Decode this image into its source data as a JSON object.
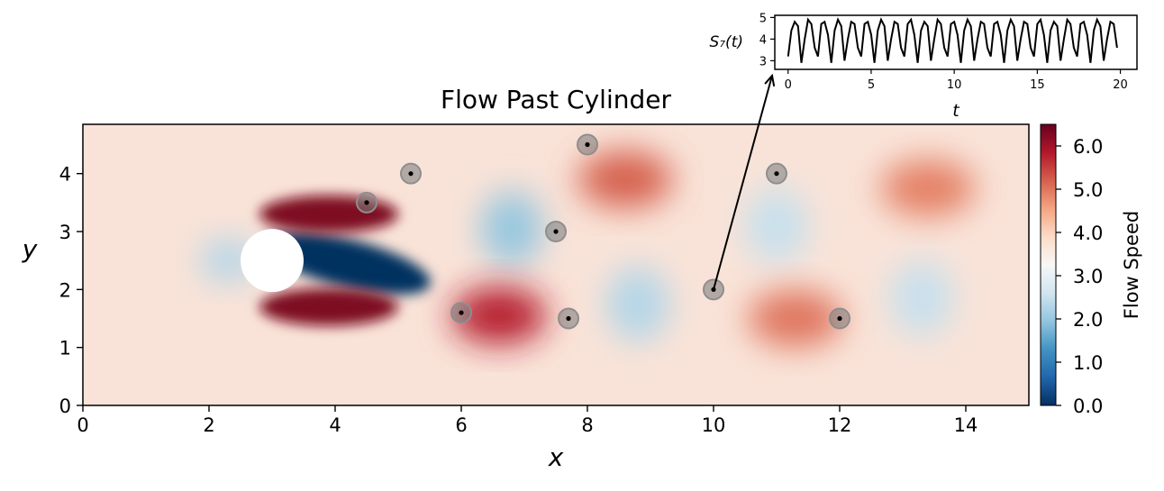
{
  "chart_data": [
    {
      "type": "heatmap",
      "title": "Flow Past Cylinder",
      "xlabel": "x",
      "ylabel": "y",
      "xlim": [
        0,
        15
      ],
      "ylim": [
        0,
        4.85
      ],
      "x_ticks": [
        0,
        2,
        4,
        6,
        8,
        10,
        12,
        14
      ],
      "y_ticks": [
        0,
        1,
        2,
        3,
        4
      ],
      "colorbar": {
        "label": "Flow Speed",
        "range": [
          0,
          6.5
        ],
        "ticks": [
          "0.0",
          "1.0",
          "2.0",
          "3.0",
          "4.0",
          "5.0",
          "6.0"
        ],
        "colormap": "RdBu_r",
        "colors": [
          "#053061",
          "#2166ac",
          "#4393c3",
          "#92c5de",
          "#d1e5f0",
          "#f7f7f7",
          "#fddbc7",
          "#f4a582",
          "#d6604d",
          "#b2182b",
          "#67001f"
        ]
      },
      "cylinder": {
        "x": 3.0,
        "y": 2.5,
        "radius": 0.5,
        "color": "#ffffff"
      },
      "sensors": [
        {
          "id": 1,
          "x": 4.5,
          "y": 3.5
        },
        {
          "id": 2,
          "x": 5.2,
          "y": 4.0
        },
        {
          "id": 3,
          "x": 6.0,
          "y": 1.6
        },
        {
          "id": 4,
          "x": 7.5,
          "y": 3.0
        },
        {
          "id": 5,
          "x": 7.7,
          "y": 1.5
        },
        {
          "id": 6,
          "x": 8.0,
          "y": 4.5
        },
        {
          "id": 7,
          "x": 10.0,
          "y": 2.0
        },
        {
          "id": 8,
          "x": 11.0,
          "y": 4.0
        },
        {
          "id": 9,
          "x": 12.0,
          "y": 1.5
        }
      ],
      "field_features": [
        {
          "kind": "wake",
          "x": 4.2,
          "y": 2.45,
          "level": 0.0
        },
        {
          "kind": "shear_high",
          "x": 3.9,
          "y": 3.3,
          "level": 6.3
        },
        {
          "kind": "shear_high",
          "x": 3.9,
          "y": 1.7,
          "level": 6.3
        },
        {
          "kind": "stagnation",
          "x": 2.3,
          "y": 2.5,
          "level": 2.3
        },
        {
          "kind": "vortex_low",
          "x": 6.8,
          "y": 3.05,
          "level": 2.0
        },
        {
          "kind": "vortex_high",
          "x": 6.6,
          "y": 1.55,
          "level": 5.8
        },
        {
          "kind": "vortex_high",
          "x": 8.6,
          "y": 3.9,
          "level": 5.2
        },
        {
          "kind": "vortex_low",
          "x": 8.8,
          "y": 1.75,
          "level": 2.3
        },
        {
          "kind": "vortex_low",
          "x": 11.0,
          "y": 3.1,
          "level": 2.5
        },
        {
          "kind": "vortex_high",
          "x": 11.3,
          "y": 1.5,
          "level": 5.0
        },
        {
          "kind": "vortex_high",
          "x": 13.4,
          "y": 3.75,
          "level": 4.9
        },
        {
          "kind": "vortex_low",
          "x": 13.3,
          "y": 1.85,
          "level": 2.5
        }
      ],
      "annotation": {
        "from_sensor": 7,
        "to": "inset"
      }
    },
    {
      "type": "line",
      "ylabel": "S₇(t)",
      "xlabel": "t",
      "xlim": [
        -0.8,
        21
      ],
      "ylim": [
        2.6,
        5.1
      ],
      "x_ticks": [
        0,
        5,
        10,
        15,
        20
      ],
      "y_ticks": [
        3,
        4,
        5
      ],
      "series": [
        {
          "line_color": "#000000",
          "x": [
            0,
            0.2,
            0.4,
            0.6,
            0.8,
            1.0,
            1.2,
            1.4,
            1.6,
            1.8,
            2.0,
            2.2,
            2.4,
            2.6,
            2.8,
            3.0,
            3.2,
            3.4,
            3.6,
            3.8,
            4.0,
            4.2,
            4.4,
            4.6,
            4.8,
            5.0,
            5.2,
            5.4,
            5.6,
            5.8,
            6.0,
            6.2,
            6.4,
            6.6,
            6.8,
            7.0,
            7.2,
            7.4,
            7.6,
            7.8,
            8.0,
            8.2,
            8.4,
            8.6,
            8.8,
            9.0,
            9.2,
            9.4,
            9.6,
            9.8,
            10.0,
            10.2,
            10.4,
            10.6,
            10.8,
            11.0,
            11.2,
            11.4,
            11.6,
            11.8,
            12.0,
            12.2,
            12.4,
            12.6,
            12.8,
            13.0,
            13.2,
            13.4,
            13.6,
            13.8,
            14.0,
            14.2,
            14.4,
            14.6,
            14.8,
            15.0,
            15.2,
            15.4,
            15.6,
            15.8,
            16.0,
            16.2,
            16.4,
            16.6,
            16.8,
            17.0,
            17.2,
            17.4,
            17.6,
            17.8,
            18.0,
            18.2,
            18.4,
            18.6,
            18.8,
            19.0,
            19.2,
            19.4,
            19.6,
            19.8
          ],
          "y": [
            3.2,
            4.4,
            4.8,
            4.6,
            2.9,
            4.0,
            4.9,
            4.7,
            3.6,
            3.2,
            4.7,
            4.8,
            4.2,
            2.9,
            4.4,
            4.9,
            4.6,
            3.0,
            4.0,
            4.8,
            4.7,
            3.6,
            3.2,
            4.7,
            4.8,
            4.2,
            2.9,
            4.4,
            4.9,
            4.6,
            3.0,
            4.0,
            4.8,
            4.7,
            3.6,
            3.2,
            4.7,
            4.9,
            4.2,
            2.9,
            4.4,
            4.8,
            4.6,
            3.0,
            4.0,
            4.9,
            4.7,
            3.6,
            3.2,
            4.7,
            4.8,
            4.2,
            2.9,
            4.4,
            4.9,
            4.6,
            3.0,
            4.0,
            4.8,
            4.7,
            3.6,
            3.2,
            4.7,
            4.8,
            4.2,
            2.9,
            4.4,
            4.9,
            4.6,
            3.0,
            4.0,
            4.8,
            4.7,
            3.6,
            3.2,
            4.7,
            4.9,
            4.2,
            2.9,
            4.4,
            4.8,
            4.6,
            3.0,
            4.0,
            4.9,
            4.7,
            3.6,
            3.2,
            4.7,
            4.8,
            4.2,
            2.9,
            4.4,
            4.9,
            4.6,
            3.0,
            4.0,
            4.8,
            4.7,
            3.6
          ]
        }
      ]
    }
  ]
}
